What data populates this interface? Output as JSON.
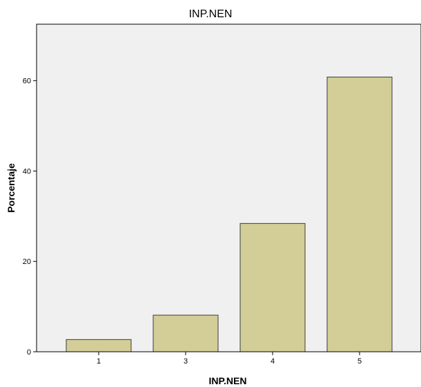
{
  "chart_data": {
    "type": "bar",
    "title": "INP.NEN",
    "xlabel": "INP.NEN",
    "ylabel": "Porcentaje",
    "categories": [
      "1",
      "3",
      "4",
      "5"
    ],
    "values": [
      2.7,
      8.1,
      28.4,
      60.8
    ],
    "ylim": [
      0,
      72.5
    ],
    "yticks": [
      0,
      20,
      40,
      60
    ],
    "grid": false,
    "legend": "none",
    "colors": {
      "bar_fill": "#d3ce97",
      "bar_stroke": "#3a3a3a",
      "plot_background": "#f0f0f0",
      "axis": "#000000"
    }
  }
}
